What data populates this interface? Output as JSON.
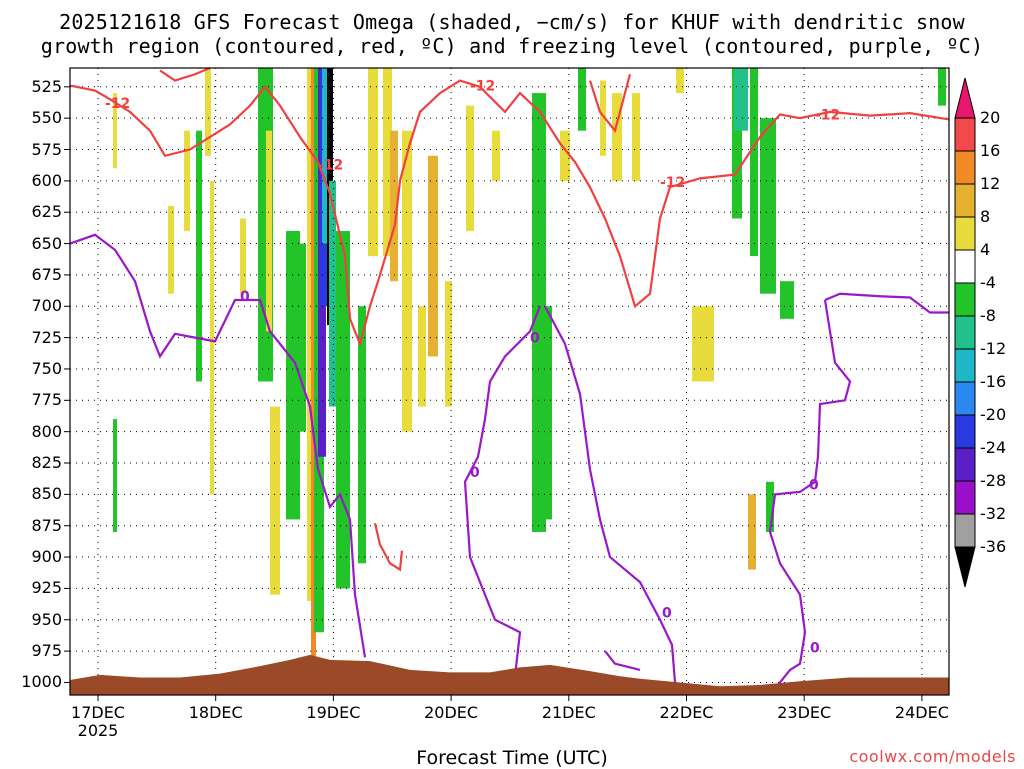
{
  "chart_data": {
    "type": "heatmap",
    "title_line1": "2025121618 GFS Forecast Omega (shaded, −cm/s) for KHUF with dendritic snow",
    "title_line2": "growth region (contoured, red, ºC) and freezing level (contoured, purple, ºC)",
    "xlabel": "Forecast Time (UTC)",
    "credit": "coolwx.com/models",
    "x_ticks": [
      "17DEC",
      "18DEC",
      "19DEC",
      "20DEC",
      "21DEC",
      "22DEC",
      "23DEC",
      "24DEC"
    ],
    "x_year": "2025",
    "y_ticks": [
      525,
      550,
      575,
      600,
      625,
      650,
      675,
      700,
      725,
      750,
      775,
      800,
      825,
      850,
      875,
      900,
      925,
      950,
      975,
      1000
    ],
    "ylim": [
      510,
      1010
    ],
    "y_axis": "pressure (hPa), inverted",
    "colorbar": {
      "ticks": [
        20,
        16,
        12,
        8,
        4,
        -4,
        -8,
        -12,
        -16,
        -20,
        -24,
        -28,
        -32,
        -36
      ],
      "colors": [
        "#e8176e",
        "#f24a4a",
        "#f08a26",
        "#e6b030",
        "#e8dc3c",
        "#ffffff",
        "#22c42a",
        "#22c08a",
        "#1fb8c8",
        "#2a88f0",
        "#2a3ae0",
        "#5a20c8",
        "#9a10c8",
        "#a0a0a0",
        "#000000"
      ]
    },
    "contours": {
      "dendritic_label": "-12",
      "freezing_label": "0",
      "dendritic_color": "#f04040",
      "freezing_color": "#9a18c8"
    },
    "terrain_color": "#9a4a28",
    "grid": "dotted"
  }
}
